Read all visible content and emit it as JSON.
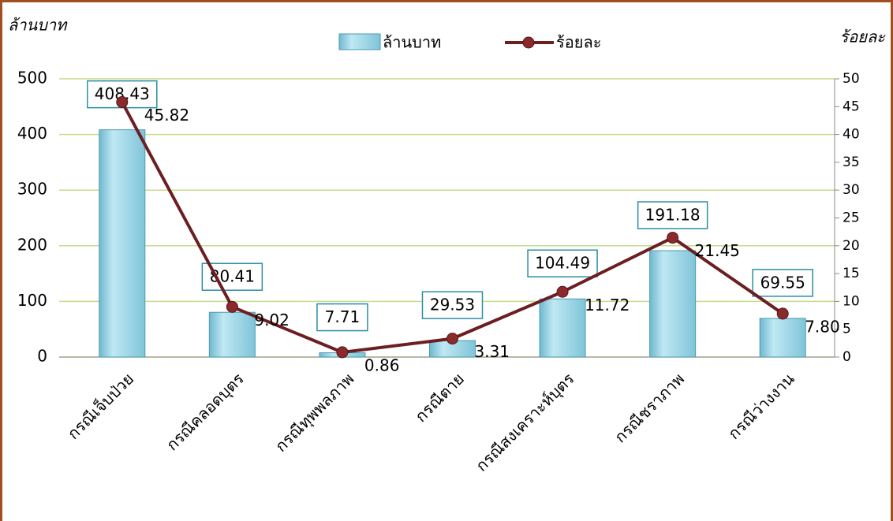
{
  "chart_data": {
    "type": "bar_line",
    "ylabel": "ล้านบาท",
    "y2label": "ร้อยละ",
    "categories": [
      "กรณีเจ็บป่วย",
      "กรณีคลอดบุตร",
      "กรณีทุพพลภาพ",
      "กรณีตาย",
      "กรณีสงเคราะห์บุตร",
      "กรณีชราภาพ",
      "กรณีว่างงาน"
    ],
    "series": [
      {
        "name": "ล้านบาท",
        "type": "bar",
        "color": "#9dd6e6",
        "values": [
          408.43,
          80.41,
          7.71,
          29.53,
          104.49,
          191.18,
          69.55
        ]
      },
      {
        "name": "ร้อยละ",
        "type": "line",
        "axis": "y2",
        "color": "#6b1f22",
        "values": [
          45.82,
          9.02,
          0.86,
          3.31,
          11.72,
          21.45,
          7.8
        ],
        "value_labels": [
          "45.82",
          "9.02",
          "0.86",
          "3.31",
          "11.72",
          "21.45",
          "7.80"
        ]
      }
    ],
    "ylim": [
      0,
      500
    ],
    "yticks": [
      0,
      100,
      200,
      300,
      400,
      500
    ],
    "y2lim": [
      0,
      50
    ],
    "y2ticks": [
      0,
      5,
      10,
      15,
      20,
      25,
      30,
      35,
      40,
      45,
      50
    ],
    "grid": true
  }
}
